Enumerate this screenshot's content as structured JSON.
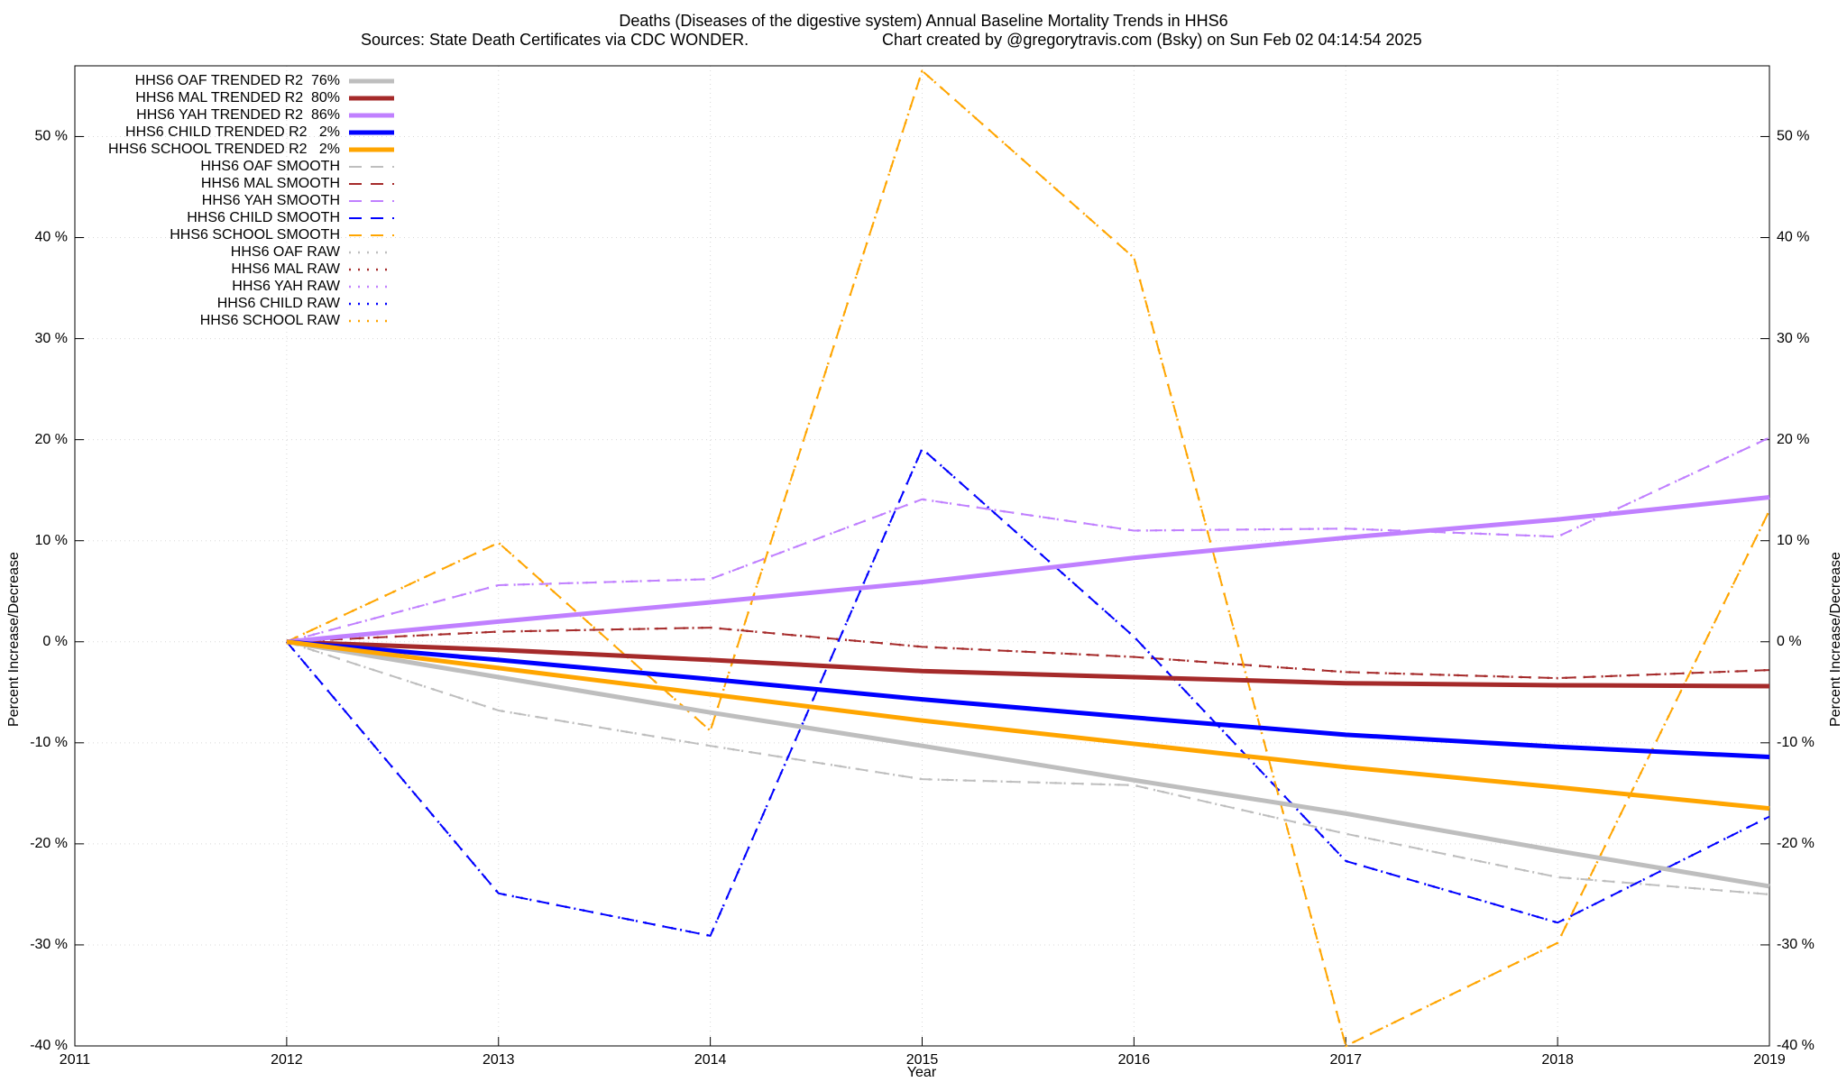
{
  "chart_data": {
    "type": "line",
    "title": "Deaths (Diseases of the digestive system)  Annual Baseline Mortality Trends in HHS6",
    "subtitle": [
      "Sources: State Death Certificates via CDC WONDER.",
      "Chart created by @gregorytravis.com (Bsky) on Sun Feb 02 04:14:54 2025"
    ],
    "x_label": "Year",
    "y_label": "Percent Increase/Decrease",
    "x": [
      2012,
      2013,
      2014,
      2015,
      2016,
      2017,
      2018,
      2019
    ],
    "xlim": [
      2011,
      2019
    ],
    "xticks": [
      2011,
      2012,
      2013,
      2014,
      2015,
      2016,
      2017,
      2018,
      2019
    ],
    "ylim": [
      -40,
      57
    ],
    "yticks": [
      {
        "value": -40,
        "label": "-40 %"
      },
      {
        "value": -30,
        "label": "-30 %"
      },
      {
        "value": -20,
        "label": "-20 %"
      },
      {
        "value": -10,
        "label": "-10 %"
      },
      {
        "value": 0,
        "label": "0 %"
      },
      {
        "value": 10,
        "label": "10 %"
      },
      {
        "value": 20,
        "label": "20 %"
      },
      {
        "value": 30,
        "label": "30 %"
      },
      {
        "value": 40,
        "label": "40 %"
      },
      {
        "value": 50,
        "label": "50 %"
      }
    ],
    "grid": true,
    "legend": "top-left",
    "series": [
      {
        "name": "HHS6 OAF TRENDED R2  76%",
        "color": "#bebebe",
        "line_style": "solid",
        "values": [
          0,
          -3.5,
          -7,
          -10.3,
          -13.7,
          -17,
          -20.7,
          -24.2
        ]
      },
      {
        "name": "HHS6 MAL TRENDED R2  80%",
        "color": "#a52a2a",
        "line_style": "solid",
        "values": [
          0,
          -0.8,
          -1.8,
          -2.9,
          -3.5,
          -4.1,
          -4.3,
          -4.4
        ]
      },
      {
        "name": "HHS6 YAH TRENDED R2  86%",
        "color": "#c080ff",
        "line_style": "solid",
        "values": [
          0,
          2.0,
          3.9,
          5.9,
          8.3,
          10.3,
          12.1,
          14.3
        ]
      },
      {
        "name": "HHS6 CHILD TRENDED R2   2%",
        "color": "#0000ff",
        "line_style": "solid",
        "values": [
          0,
          -1.8,
          -3.7,
          -5.7,
          -7.5,
          -9.2,
          -10.4,
          -11.4
        ]
      },
      {
        "name": "HHS6 SCHOOL TRENDED R2   2%",
        "color": "#ffa500",
        "line_style": "solid",
        "values": [
          0,
          -2.6,
          -5.2,
          -7.8,
          -10.1,
          -12.4,
          -14.4,
          -16.5
        ]
      },
      {
        "name": "HHS6 OAF SMOOTH",
        "color": "#bebebe",
        "line_style": "dashed",
        "values": [
          0,
          -6.8,
          -10.3,
          -13.6,
          -14.2,
          -19,
          -23.3,
          -25
        ]
      },
      {
        "name": "HHS6 MAL SMOOTH",
        "color": "#a52a2a",
        "line_style": "dashed",
        "values": [
          0,
          1.0,
          1.4,
          -0.5,
          -1.5,
          -3.0,
          -3.6,
          -2.8
        ]
      },
      {
        "name": "HHS6 YAH SMOOTH",
        "color": "#c080ff",
        "line_style": "dashed",
        "values": [
          0,
          5.6,
          6.2,
          14.1,
          11.0,
          11.2,
          10.4,
          20.2
        ]
      },
      {
        "name": "HHS6 CHILD SMOOTH",
        "color": "#0000ff",
        "line_style": "dashed",
        "values": [
          0,
          -24.9,
          -29.1,
          19.1,
          0.5,
          -21.7,
          -27.8,
          -17.3
        ]
      },
      {
        "name": "HHS6 SCHOOL SMOOTH",
        "color": "#ffa500",
        "line_style": "dashed",
        "values": [
          0,
          9.8,
          -8.8,
          56.5,
          38,
          -40,
          -29.8,
          13
        ]
      },
      {
        "name": "HHS6 OAF RAW",
        "color": "#bebebe",
        "line_style": "dotted",
        "values": [
          0,
          -6.8,
          -10.3,
          -13.6,
          -14.2,
          -19,
          -23.3,
          -25
        ]
      },
      {
        "name": "HHS6 MAL RAW",
        "color": "#a52a2a",
        "line_style": "dotted",
        "values": [
          0,
          1.0,
          1.4,
          -0.5,
          -1.5,
          -3.0,
          -3.6,
          -2.8
        ]
      },
      {
        "name": "HHS6 YAH RAW",
        "color": "#c080ff",
        "line_style": "dotted",
        "values": [
          0,
          5.6,
          6.2,
          14.1,
          11.0,
          11.2,
          10.4,
          20.2
        ]
      },
      {
        "name": "HHS6 CHILD RAW",
        "color": "#0000ff",
        "line_style": "dotted",
        "values": [
          0,
          -24.9,
          -29.1,
          19.1,
          0.5,
          -21.7,
          -27.8,
          -17.3
        ]
      },
      {
        "name": "HHS6 SCHOOL RAW",
        "color": "#ffa500",
        "line_style": "dotted",
        "values": [
          0,
          9.8,
          -8.8,
          56.5,
          38,
          -40,
          -29.8,
          13
        ]
      }
    ]
  }
}
